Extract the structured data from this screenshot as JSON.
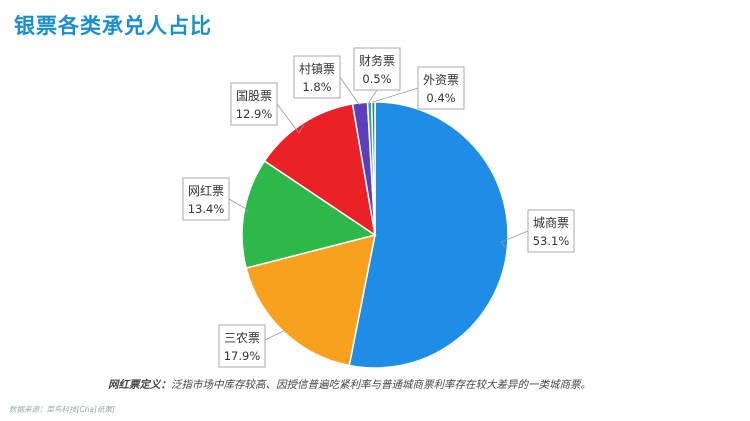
{
  "title": "银票各类承兑人占比",
  "chart_data": {
    "type": "pie",
    "title": "银票各类承兑人占比",
    "slices": [
      {
        "name": "城商票",
        "value": 53.1,
        "label": "53.1%",
        "color": "#1f8ce6"
      },
      {
        "name": "三农票",
        "value": 17.9,
        "label": "17.9%",
        "color": "#f7a11f"
      },
      {
        "name": "网红票",
        "value": 13.4,
        "label": "13.4%",
        "color": "#2cb84a"
      },
      {
        "name": "国股票",
        "value": 12.9,
        "label": "12.9%",
        "color": "#ec2127"
      },
      {
        "name": "村镇票",
        "value": 1.8,
        "label": "1.8%",
        "color": "#5a3fb8"
      },
      {
        "name": "财务票",
        "value": 0.5,
        "label": "0.5%",
        "color": "#3c9ab0"
      },
      {
        "name": "外资票",
        "value": 0.4,
        "label": "0.4%",
        "color": "#2e8b57"
      }
    ],
    "legend": "none"
  },
  "footnote": {
    "label": "网红票定义：",
    "text": "泛指市场中库存较高、因授信普遍吃紧利率与普通城商票利率存在较大差异的一类城商票。"
  },
  "source": "数据来源：菜鸟科技[Cha]纸票]"
}
